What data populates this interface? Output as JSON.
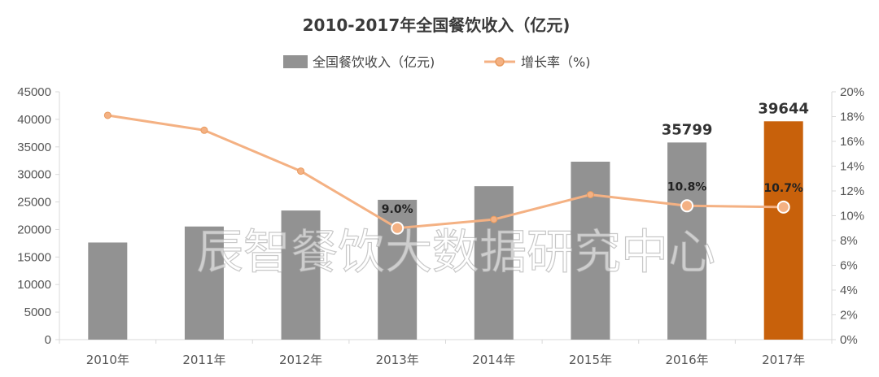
{
  "chart_data": {
    "type": "bar+line",
    "title": "2010-2017年全国餐饮收入（亿元)",
    "categories": [
      "2010年",
      "2011年",
      "2012年",
      "2013年",
      "2014年",
      "2015年",
      "2016年",
      "2017年"
    ],
    "series": [
      {
        "name": "全国餐饮收入（亿元)",
        "type": "bar",
        "axis": "left",
        "values": [
          17636,
          20543,
          23448,
          25392,
          27860,
          32310,
          35799,
          39644
        ],
        "colors": [
          "#929292",
          "#929292",
          "#929292",
          "#929292",
          "#929292",
          "#929292",
          "#929292",
          "#c8610b"
        ]
      },
      {
        "name": "增长率（%)",
        "type": "line",
        "axis": "right",
        "values": [
          18.1,
          16.9,
          13.6,
          9.0,
          9.7,
          11.7,
          10.8,
          10.7
        ],
        "color": "#f4b183"
      }
    ],
    "bar_labels": [
      {
        "index": 6,
        "text": "35799"
      },
      {
        "index": 7,
        "text": "39644"
      }
    ],
    "point_labels": [
      {
        "index": 3,
        "text": "9.0%"
      },
      {
        "index": 6,
        "text": "10.8%"
      },
      {
        "index": 7,
        "text": "10.7%"
      }
    ],
    "y_left": {
      "min": 0,
      "max": 45000,
      "step": 5000,
      "ticks": [
        "0",
        "5000",
        "10000",
        "15000",
        "20000",
        "25000",
        "30000",
        "35000",
        "40000",
        "45000"
      ]
    },
    "y_right": {
      "min": 0,
      "max": 20,
      "step": 2,
      "ticks": [
        "0%",
        "2%",
        "4%",
        "6%",
        "8%",
        "10%",
        "12%",
        "14%",
        "16%",
        "18%",
        "20%"
      ]
    },
    "legend_position": "top-center",
    "watermark": "辰智餐饮大数据研究中心",
    "grid": false
  }
}
